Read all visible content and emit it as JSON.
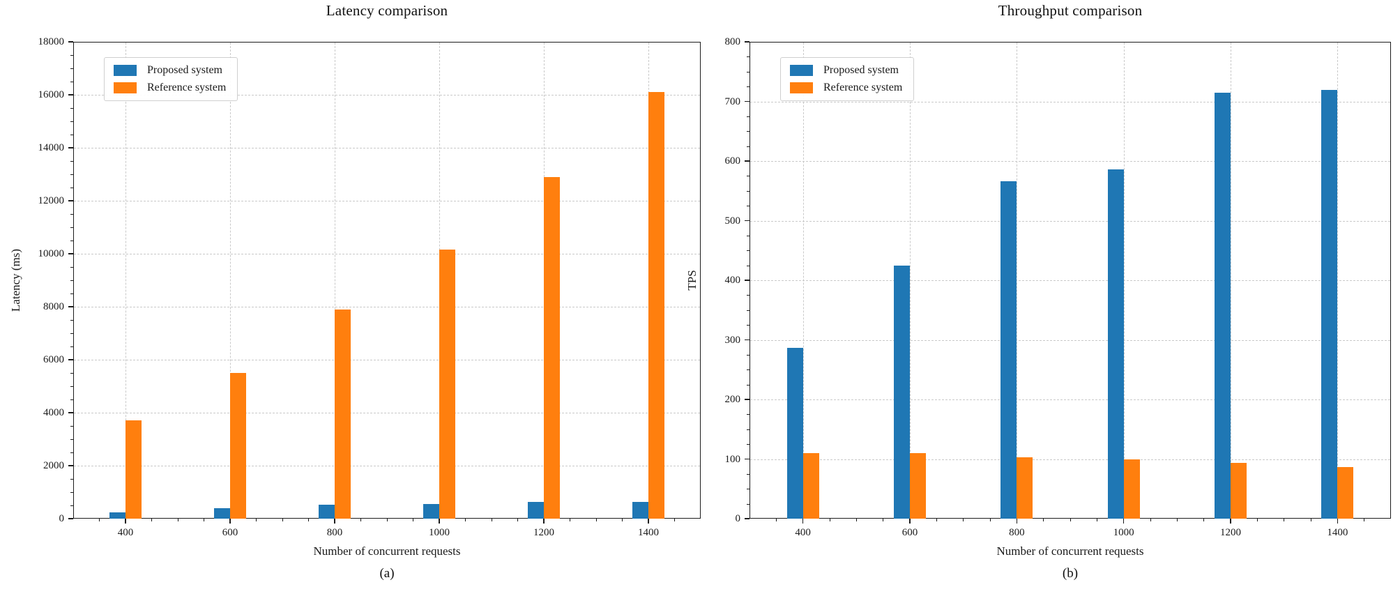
{
  "figure": {
    "background": "#ffffff",
    "text_color": "#111111",
    "grid_color": "#c9c9c9",
    "spine_color": "#1c1c1c"
  },
  "chart_data": [
    {
      "type": "bar",
      "title": "Latency comparison",
      "caption": "(a)",
      "xlabel": "Number of concurrent requests",
      "ylabel": "Latency (ms)",
      "categories": [
        400,
        600,
        800,
        1000,
        1200,
        1400
      ],
      "x_tick_labels": [
        "400",
        "600",
        "800",
        "1000",
        "1200",
        "1400"
      ],
      "series": [
        {
          "name": "Proposed system",
          "color": "#1f77b4",
          "values": [
            250,
            390,
            515,
            565,
            620,
            620
          ]
        },
        {
          "name": "Reference system",
          "color": "#ff7f0e",
          "values": [
            3700,
            5500,
            7900,
            10150,
            12900,
            16100
          ]
        }
      ],
      "ylim": [
        0,
        18000
      ],
      "y_tick_step": 2000,
      "y_minor_step": 500,
      "y_tick_labels": [
        "0",
        "2000",
        "4000",
        "6000",
        "8000",
        "10000",
        "12000",
        "14000",
        "16000",
        "18000"
      ],
      "xlim": [
        300,
        1500
      ],
      "x_minor_step": 50,
      "grid": true,
      "grid_style": "dashed",
      "legend_position": "upper left"
    },
    {
      "type": "bar",
      "title": "Throughput comparison",
      "caption": "(b)",
      "xlabel": "Number of concurrent requests",
      "ylabel": "TPS",
      "categories": [
        400,
        600,
        800,
        1000,
        1200,
        1400
      ],
      "x_tick_labels": [
        "400",
        "600",
        "800",
        "1000",
        "1200",
        "1400"
      ],
      "series": [
        {
          "name": "Proposed system",
          "color": "#1f77b4",
          "values": [
            287,
            425,
            566,
            586,
            715,
            719
          ]
        },
        {
          "name": "Reference system",
          "color": "#ff7f0e",
          "values": [
            110,
            110,
            103,
            99,
            94,
            87
          ]
        }
      ],
      "ylim": [
        0,
        800
      ],
      "y_tick_step": 100,
      "y_minor_step": 25,
      "y_tick_labels": [
        "0",
        "100",
        "200",
        "300",
        "400",
        "500",
        "600",
        "700",
        "800"
      ],
      "xlim": [
        300,
        1500
      ],
      "x_minor_step": 50,
      "grid": true,
      "grid_style": "dashed",
      "legend_position": "upper left"
    }
  ]
}
